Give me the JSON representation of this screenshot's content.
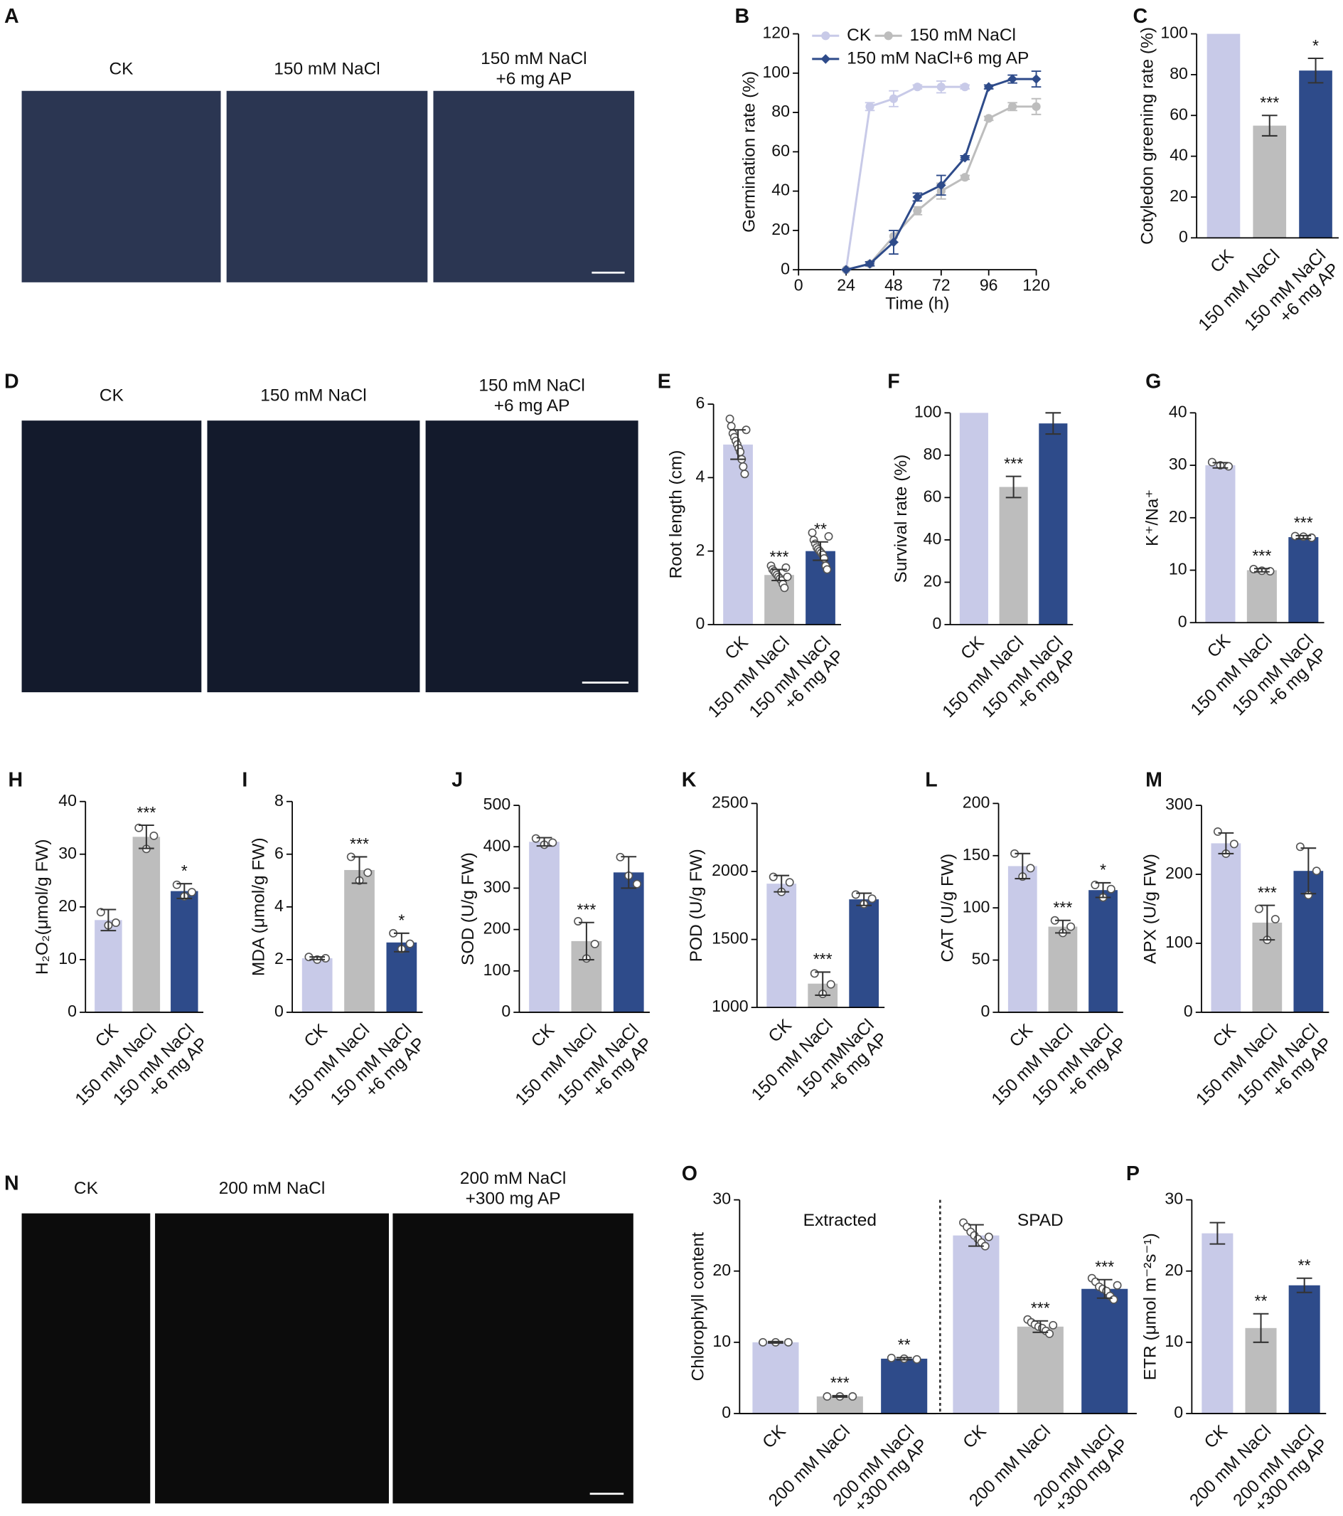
{
  "images": [
    {
      "panel": "A",
      "labels": [
        [
          "CK"
        ],
        [
          "150 mM NaCl"
        ],
        [
          "150 mM NaCl",
          "+6 mg AP"
        ]
      ]
    },
    {
      "panel": "D",
      "labels": [
        [
          "CK"
        ],
        [
          "150 mM NaCl"
        ],
        [
          "150 mM NaCl",
          "+6 mg AP"
        ]
      ]
    },
    {
      "panel": "N",
      "labels": [
        [
          "CK"
        ],
        [
          "200 mM NaCl"
        ],
        [
          "200 mM NaCl",
          "+300 mg AP"
        ]
      ]
    }
  ],
  "chart_data": [
    {
      "type": "line",
      "panel": "B",
      "ylabel": "Germination rate (%)",
      "xlabel": "Time (h)",
      "xlim": [
        0,
        120
      ],
      "xticks": [
        0,
        24,
        48,
        72,
        96,
        120
      ],
      "ylim": [
        0,
        120
      ],
      "yticks": [
        0,
        20,
        40,
        60,
        80,
        100,
        120
      ],
      "series": [
        {
          "name": "CK",
          "color": "#c8cae8",
          "marker": "circle",
          "x": [
            24,
            36,
            48,
            60,
            72,
            84
          ],
          "values": [
            0,
            83,
            87,
            93,
            93,
            93
          ],
          "errors": [
            0,
            2,
            4,
            1,
            3,
            1
          ]
        },
        {
          "name": "150 mM NaCl",
          "color": "#bdbdbd",
          "marker": "circle",
          "x": [
            24,
            36,
            48,
            60,
            72,
            84,
            96,
            108,
            120
          ],
          "values": [
            0,
            3,
            17,
            30,
            40,
            47,
            77,
            83,
            83
          ],
          "errors": [
            0,
            1,
            3,
            2,
            4,
            1,
            1,
            2,
            4
          ]
        },
        {
          "name": "150 mM NaCl+6 mg AP",
          "color": "#2e4b8a",
          "marker": "diamond",
          "x": [
            24,
            36,
            48,
            60,
            72,
            84,
            96,
            108,
            120
          ],
          "values": [
            0,
            3,
            14,
            37,
            43,
            57,
            93,
            97,
            97
          ],
          "errors": [
            0,
            1,
            6,
            2,
            5,
            1,
            1,
            2,
            4
          ]
        }
      ]
    },
    {
      "type": "bar",
      "panel": "C",
      "ylabel": "Cotyledon greening rate (%)",
      "ylim": [
        0,
        100
      ],
      "yticks": [
        0,
        20,
        40,
        60,
        80,
        100
      ],
      "categories": [
        [
          "CK"
        ],
        [
          "150 mM NaCl"
        ],
        [
          "150 mM NaCl",
          "+6 mg AP"
        ]
      ],
      "colors": [
        "#c8cae8",
        "#bdbdbd",
        "#2e4b8a"
      ],
      "values": [
        100,
        55,
        82
      ],
      "errors": [
        null,
        5,
        6
      ],
      "annotations": [
        null,
        "***",
        "*"
      ]
    },
    {
      "type": "bar",
      "panel": "E",
      "ylabel": "Root length (cm)",
      "ylim": [
        0,
        6
      ],
      "yticks": [
        0,
        2,
        4,
        6
      ],
      "categories": [
        [
          "CK"
        ],
        [
          "150 mM NaCl"
        ],
        [
          "150 mM NaCl",
          "+6 mg AP"
        ]
      ],
      "colors": [
        "#c8cae8",
        "#bdbdbd",
        "#2e4b8a"
      ],
      "values": [
        4.9,
        1.35,
        2.0
      ],
      "errors": [
        0.4,
        0.15,
        0.25
      ],
      "annotations": [
        null,
        "***",
        "**"
      ],
      "points": [
        [
          5.6,
          5.4,
          5.2,
          5.1,
          5.0,
          4.9,
          4.8,
          4.7,
          4.5,
          4.3,
          4.1,
          5.3
        ],
        [
          1.6,
          1.5,
          1.45,
          1.4,
          1.35,
          1.3,
          1.25,
          1.2,
          1.1,
          1.0,
          1.55,
          1.3
        ],
        [
          2.5,
          2.3,
          2.2,
          2.1,
          2.05,
          2.0,
          1.95,
          1.9,
          1.8,
          1.6,
          1.5,
          2.4
        ]
      ]
    },
    {
      "type": "bar",
      "panel": "F",
      "ylabel": "Survival rate (%)",
      "ylim": [
        0,
        100
      ],
      "yticks": [
        0,
        20,
        40,
        60,
        80,
        100
      ],
      "categories": [
        [
          "CK"
        ],
        [
          "150 mM NaCl"
        ],
        [
          "150 mM NaCl",
          "+6 mg AP"
        ]
      ],
      "colors": [
        "#c8cae8",
        "#bdbdbd",
        "#2e4b8a"
      ],
      "values": [
        100,
        65,
        95
      ],
      "errors": [
        null,
        5,
        5
      ],
      "annotations": [
        null,
        "***",
        null
      ]
    },
    {
      "type": "bar",
      "panel": "G",
      "ylabel": "K⁺/Na⁺",
      "ylim": [
        0,
        40
      ],
      "yticks": [
        0,
        10,
        20,
        30,
        40
      ],
      "categories": [
        [
          "CK"
        ],
        [
          "150 mM NaCl"
        ],
        [
          "150 mM NaCl",
          "+6 mg AP"
        ]
      ],
      "colors": [
        "#c8cae8",
        "#bdbdbd",
        "#2e4b8a"
      ],
      "values": [
        30,
        10,
        16.3
      ],
      "errors": [
        0.5,
        0.3,
        0.3
      ],
      "annotations": [
        null,
        "***",
        "***"
      ],
      "points": [
        [
          30.6,
          30.0,
          29.8
        ],
        [
          10.2,
          9.9,
          9.8
        ],
        [
          16.5,
          16.4,
          16.2
        ]
      ]
    },
    {
      "type": "bar",
      "panel": "H",
      "ylabel": "H₂O₂(μmol/g FW)",
      "ylim": [
        0,
        40
      ],
      "yticks": [
        0,
        10,
        20,
        30,
        40
      ],
      "categories": [
        [
          "CK"
        ],
        [
          "150 mM NaCl"
        ],
        [
          "150 mM NaCl",
          "+6 mg AP"
        ]
      ],
      "colors": [
        "#c8cae8",
        "#bdbdbd",
        "#2e4b8a"
      ],
      "values": [
        17.5,
        33.3,
        23
      ],
      "errors": [
        2,
        2.2,
        1.4
      ],
      "annotations": [
        null,
        "***",
        "*"
      ],
      "points": [
        [
          19,
          16.5,
          17
        ],
        [
          35,
          31,
          33.5
        ],
        [
          24.2,
          22,
          22.8
        ]
      ]
    },
    {
      "type": "bar",
      "panel": "I",
      "ylabel": "MDA (μmol/g FW)",
      "ylim": [
        0,
        8
      ],
      "yticks": [
        0,
        2,
        4,
        6,
        8
      ],
      "categories": [
        [
          "CK"
        ],
        [
          "150 mM NaCl"
        ],
        [
          "150 mM NaCl",
          "+6 mg AP"
        ]
      ],
      "colors": [
        "#c8cae8",
        "#bdbdbd",
        "#2e4b8a"
      ],
      "values": [
        2.05,
        5.4,
        2.65
      ],
      "errors": [
        0.05,
        0.5,
        0.35
      ],
      "annotations": [
        null,
        "***",
        "*"
      ],
      "points": [
        [
          2.1,
          2.0,
          2.05
        ],
        [
          5.9,
          5.0,
          5.3
        ],
        [
          3.0,
          2.4,
          2.6
        ]
      ]
    },
    {
      "type": "bar",
      "panel": "J",
      "ylabel": "SOD (U/g FW)",
      "ylim": [
        0,
        500
      ],
      "yticks": [
        0,
        100,
        200,
        300,
        400,
        500
      ],
      "categories": [
        [
          "CK"
        ],
        [
          "150 mM NaCl"
        ],
        [
          "150 mM NaCl",
          "+6 mg AP"
        ]
      ],
      "colors": [
        "#c8cae8",
        "#bdbdbd",
        "#2e4b8a"
      ],
      "values": [
        412,
        172,
        338
      ],
      "errors": [
        10,
        45,
        38
      ],
      "annotations": [
        null,
        "***",
        null
      ],
      "points": [
        [
          420,
          405,
          410
        ],
        [
          220,
          130,
          165
        ],
        [
          375,
          330,
          310
        ]
      ]
    },
    {
      "type": "bar",
      "panel": "K",
      "ylabel": "POD (U/g FW)",
      "ylim": [
        1000,
        2500
      ],
      "yticks": [
        1000,
        1500,
        2000,
        2500
      ],
      "categories": [
        [
          "CK"
        ],
        [
          "150 mM NaCl"
        ],
        [
          "150 mMNaCl",
          "+6 mg AP"
        ]
      ],
      "colors": [
        "#c8cae8",
        "#bdbdbd",
        "#2e4b8a"
      ],
      "values": [
        1910,
        1175,
        1795
      ],
      "errors": [
        60,
        85,
        45
      ],
      "annotations": [
        null,
        "***",
        null
      ],
      "points": [
        [
          1960,
          1850,
          1920
        ],
        [
          1250,
          1100,
          1170
        ],
        [
          1830,
          1760,
          1800
        ]
      ]
    },
    {
      "type": "bar",
      "panel": "L",
      "ylabel": "CAT (U/g FW)",
      "ylim": [
        0,
        200
      ],
      "yticks": [
        0,
        50,
        100,
        150,
        200
      ],
      "categories": [
        [
          "CK"
        ],
        [
          "150 mM NaCl"
        ],
        [
          "150 mM NaCl",
          "+6 mg AP"
        ]
      ],
      "colors": [
        "#c8cae8",
        "#bdbdbd",
        "#2e4b8a"
      ],
      "values": [
        140,
        82,
        117
      ],
      "errors": [
        12,
        6,
        7
      ],
      "annotations": [
        null,
        "***",
        "*"
      ],
      "points": [
        [
          152,
          130,
          138
        ],
        [
          88,
          76,
          82
        ],
        [
          122,
          110,
          118
        ]
      ]
    },
    {
      "type": "bar",
      "panel": "M",
      "ylabel": "APX (U/g FW)",
      "ylim": [
        0,
        300
      ],
      "yticks": [
        0,
        100,
        200,
        300
      ],
      "categories": [
        [
          "CK"
        ],
        [
          "150 mM NaCl"
        ],
        [
          "150 mM NaCl",
          "+6 mg AP"
        ]
      ],
      "colors": [
        "#c8cae8",
        "#bdbdbd",
        "#2e4b8a"
      ],
      "values": [
        245,
        130,
        205
      ],
      "errors": [
        15,
        25,
        33
      ],
      "annotations": [
        null,
        "***",
        null
      ],
      "points": [
        [
          262,
          230,
          244
        ],
        [
          150,
          105,
          135
        ],
        [
          240,
          170,
          205
        ]
      ]
    },
    {
      "type": "grouped_bar",
      "panel": "O",
      "ylabel": "Chlorophyll content",
      "ylim": [
        0,
        30
      ],
      "yticks": [
        0,
        10,
        20,
        30
      ],
      "categories": [
        [
          "CK"
        ],
        [
          "200 mM NaCl"
        ],
        [
          "200 mM NaCl",
          "+300 mg AP"
        ]
      ],
      "colors": [
        "#c8cae8",
        "#bdbdbd",
        "#2e4b8a"
      ],
      "groups": [
        {
          "name": "Extracted",
          "values": [
            10,
            2.4,
            7.7
          ],
          "errors": [
            0.1,
            0.1,
            0.15
          ],
          "annotations": [
            null,
            "***",
            "**"
          ],
          "points": [
            [
              10,
              10,
              10
            ],
            [
              2.4,
              2.4,
              2.4
            ],
            [
              7.8,
              7.7,
              7.6
            ]
          ]
        },
        {
          "name": "SPAD",
          "values": [
            25,
            12.2,
            17.5
          ],
          "errors": [
            1.5,
            0.8,
            1.3
          ],
          "annotations": [
            null,
            "***",
            "***"
          ],
          "points": [
            [
              26.8,
              26.2,
              25.5,
              25,
              24.5,
              24,
              23.5,
              24.8
            ],
            [
              13.2,
              12.8,
              12.5,
              12.2,
              12,
              11.6,
              11.2,
              12.4
            ],
            [
              19,
              18.5,
              17.8,
              17.5,
              17.2,
              16.5,
              16,
              18
            ]
          ]
        }
      ]
    },
    {
      "type": "bar",
      "panel": "P",
      "ylabel": "ETR (μmol m⁻²s⁻¹)",
      "ylim": [
        0,
        30
      ],
      "yticks": [
        0,
        10,
        20,
        30
      ],
      "categories": [
        [
          "CK"
        ],
        [
          "200 mM NaCl"
        ],
        [
          "200 mM NaCl",
          "+300 mg AP"
        ]
      ],
      "colors": [
        "#c8cae8",
        "#bdbdbd",
        "#2e4b8a"
      ],
      "values": [
        25.3,
        12,
        18
      ],
      "errors": [
        1.5,
        2,
        1
      ],
      "annotations": [
        null,
        "**",
        "**"
      ]
    }
  ]
}
